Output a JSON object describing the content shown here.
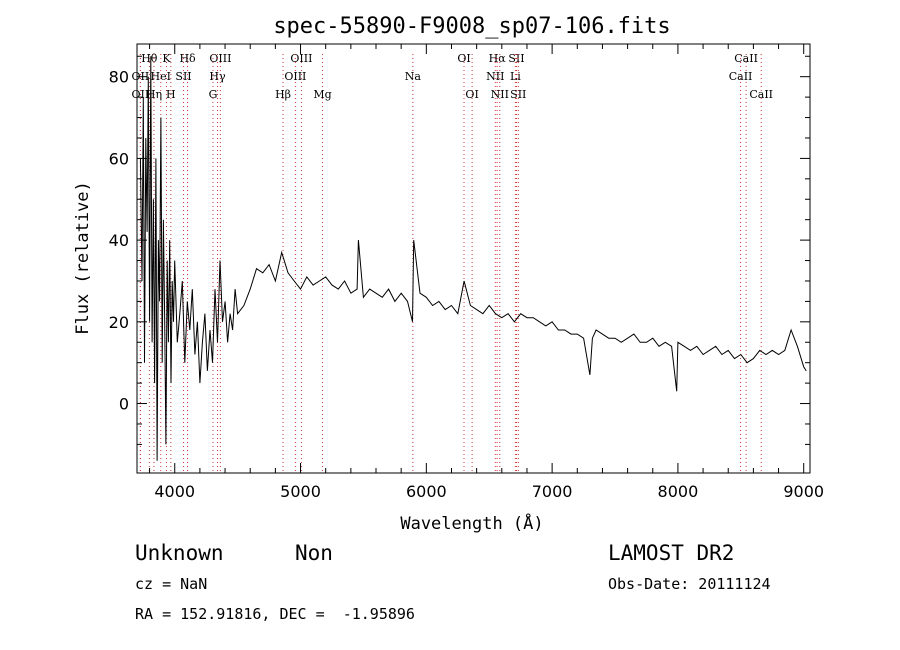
{
  "chart_data": {
    "type": "line",
    "title": "spec-55890-F9008_sp07-106.fits",
    "xlabel": "Wavelength (Å)",
    "ylabel": "Flux (relative)",
    "xlim": [
      3700,
      9050
    ],
    "ylim": [
      -17,
      88
    ],
    "xticks": [
      4000,
      5000,
      6000,
      7000,
      8000,
      9000
    ],
    "yticks": [
      0,
      20,
      40,
      60,
      80
    ],
    "grid": false,
    "line_color": "#000000",
    "marker_color": "#cc3333",
    "series": [
      {
        "x": [
          3727,
          3740,
          3750,
          3760,
          3770,
          3780,
          3790,
          3800,
          3810,
          3820,
          3830,
          3840,
          3850,
          3860,
          3870,
          3880,
          3890,
          3900,
          3910,
          3920,
          3930,
          3940,
          3950,
          3960,
          3970,
          3980,
          3990,
          4000,
          4020,
          4040,
          4060,
          4080,
          4100,
          4120,
          4140,
          4160,
          4180,
          4200,
          4220,
          4240,
          4260,
          4280,
          4300,
          4320,
          4340,
          4360,
          4380,
          4400,
          4420,
          4440,
          4460,
          4480,
          4500,
          4550,
          4600,
          4650,
          4700,
          4750,
          4800,
          4850,
          4900,
          4950,
          5000,
          5050,
          5100,
          5150,
          5200,
          5250,
          5300,
          5350,
          5400,
          5450,
          5460,
          5500,
          5550,
          5600,
          5650,
          5700,
          5750,
          5800,
          5850,
          5890,
          5900,
          5950,
          6000,
          6050,
          6100,
          6150,
          6200,
          6250,
          6300,
          6350,
          6400,
          6450,
          6500,
          6550,
          6600,
          6650,
          6700,
          6750,
          6800,
          6850,
          6900,
          6950,
          7000,
          7050,
          7100,
          7150,
          7200,
          7250,
          7300,
          7320,
          7350,
          7400,
          7450,
          7500,
          7550,
          7600,
          7650,
          7700,
          7750,
          7800,
          7850,
          7900,
          7950,
          7990,
          8000,
          8050,
          8100,
          8150,
          8200,
          8250,
          8300,
          8350,
          8400,
          8450,
          8500,
          8550,
          8600,
          8650,
          8700,
          8750,
          8800,
          8850,
          8900,
          8950,
          9000,
          9020
        ],
        "y": [
          60,
          30,
          75,
          10,
          65,
          42,
          80,
          20,
          85,
          15,
          50,
          5,
          60,
          -14,
          40,
          25,
          70,
          10,
          45,
          20,
          -10,
          35,
          15,
          40,
          5,
          30,
          20,
          35,
          15,
          22,
          30,
          10,
          25,
          18,
          28,
          12,
          20,
          5,
          15,
          22,
          8,
          18,
          10,
          28,
          15,
          35,
          20,
          25,
          15,
          22,
          18,
          28,
          22,
          24,
          28,
          33,
          32,
          34,
          30,
          37,
          32,
          30,
          28,
          31,
          29,
          30,
          31,
          29,
          28,
          30,
          27,
          28,
          40,
          26,
          28,
          27,
          26,
          28,
          25,
          27,
          25,
          20,
          40,
          27,
          26,
          24,
          25,
          23,
          24,
          22,
          30,
          24,
          23,
          22,
          24,
          22,
          21,
          22,
          20,
          22,
          21,
          21,
          20,
          19,
          20,
          18,
          18,
          17,
          17,
          16,
          7,
          16,
          18,
          17,
          16,
          16,
          15,
          16,
          17,
          15,
          15,
          16,
          14,
          15,
          14,
          3,
          15,
          14,
          13,
          14,
          12,
          13,
          14,
          12,
          13,
          11,
          12,
          10,
          11,
          13,
          12,
          13,
          12,
          13,
          18,
          14,
          9,
          8
        ]
      }
    ],
    "lines": [
      {
        "label": "Hθ",
        "x": 3798,
        "row": 0
      },
      {
        "label": "OII",
        "x": 3727,
        "row": 1
      },
      {
        "label": "OII",
        "x": 3727,
        "row": 2
      },
      {
        "label": "K",
        "x": 3934,
        "row": 0
      },
      {
        "label": "Hδ",
        "x": 4102,
        "row": 0
      },
      {
        "label": "HeI",
        "x": 3889,
        "row": 1
      },
      {
        "label": "SII",
        "x": 4070,
        "row": 1
      },
      {
        "label": "Hη",
        "x": 3835,
        "row": 2
      },
      {
        "label": "H",
        "x": 3969,
        "row": 2
      },
      {
        "label": "OIII",
        "x": 4363,
        "row": 0
      },
      {
        "label": "Hγ",
        "x": 4340,
        "row": 1
      },
      {
        "label": "G",
        "x": 4304,
        "row": 2
      },
      {
        "label": "OIII",
        "x": 5007,
        "row": 0
      },
      {
        "label": "OIII",
        "x": 4959,
        "row": 1
      },
      {
        "label": "Hβ",
        "x": 4861,
        "row": 2
      },
      {
        "label": "Mg",
        "x": 5175,
        "row": 2
      },
      {
        "label": "Na",
        "x": 5893,
        "row": 1
      },
      {
        "label": "OI",
        "x": 6300,
        "row": 0
      },
      {
        "label": "OI",
        "x": 6364,
        "row": 2
      },
      {
        "label": "Hα",
        "x": 6563,
        "row": 0
      },
      {
        "label": "SII",
        "x": 6717,
        "row": 0
      },
      {
        "label": "NII",
        "x": 6548,
        "row": 1
      },
      {
        "label": "Li",
        "x": 6708,
        "row": 1
      },
      {
        "label": "NII",
        "x": 6584,
        "row": 2
      },
      {
        "label": "SII",
        "x": 6731,
        "row": 2
      },
      {
        "label": "CaII",
        "x": 8542,
        "row": 0
      },
      {
        "label": "CaII",
        "x": 8498,
        "row": 1
      },
      {
        "label": "CaII",
        "x": 8662,
        "row": 2
      }
    ]
  },
  "info": {
    "class": "Unknown",
    "subclass": "Non",
    "survey": "LAMOST DR2",
    "cz": "cz = NaN",
    "obs_date": "Obs-Date: 20111124",
    "radec": "RA = 152.91816, DEC =  -1.95896"
  }
}
